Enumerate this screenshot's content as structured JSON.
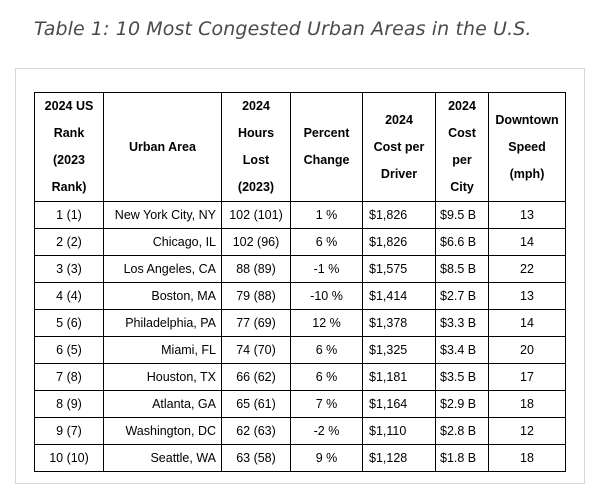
{
  "caption": "Table 1: 10 Most Congested Urban Areas in the U.S.",
  "columns": [
    [
      "2024 US",
      "Rank",
      "(2023",
      "Rank)"
    ],
    [
      "Urban Area"
    ],
    [
      "2024",
      "Hours",
      "Lost",
      "(2023)"
    ],
    [
      "Percent",
      "Change"
    ],
    [
      "2024",
      "Cost per",
      "Driver"
    ],
    [
      "2024",
      "Cost",
      "per",
      "City"
    ],
    [
      "Downtown",
      "Speed",
      "(mph)"
    ]
  ],
  "rows": [
    [
      "1 (1)",
      "New York City, NY",
      "102 (101)",
      "1 %",
      "$1,826",
      "$9.5 B",
      "13"
    ],
    [
      "2 (2)",
      "Chicago, IL",
      "102 (96)",
      "6 %",
      "$1,826",
      "$6.6 B",
      "14"
    ],
    [
      "3 (3)",
      "Los Angeles, CA",
      "88 (89)",
      "-1 %",
      "$1,575",
      "$8.5 B",
      "22"
    ],
    [
      "4 (4)",
      "Boston, MA",
      "79 (88)",
      "-10 %",
      "$1,414",
      "$2.7 B",
      "13"
    ],
    [
      "5 (6)",
      "Philadelphia, PA",
      "77 (69)",
      "12 %",
      "$1,378",
      "$3.3 B",
      "14"
    ],
    [
      "6 (5)",
      "Miami, FL",
      "74 (70)",
      "6 %",
      "$1,325",
      "$3.4 B",
      "20"
    ],
    [
      "7 (8)",
      "Houston, TX",
      "66 (62)",
      "6 %",
      "$1,181",
      "$3.5 B",
      "17"
    ],
    [
      "8 (9)",
      "Atlanta, GA",
      "65 (61)",
      "7 %",
      "$1,164",
      "$2.9 B",
      "18"
    ],
    [
      "9 (7)",
      "Washington, DC",
      "62 (63)",
      "-2 %",
      "$1,110",
      "$2.8 B",
      "12"
    ],
    [
      "10 (10)",
      "Seattle, WA",
      "63 (58)",
      "9 %",
      "$1,128",
      "$1.8 B",
      "18"
    ]
  ]
}
